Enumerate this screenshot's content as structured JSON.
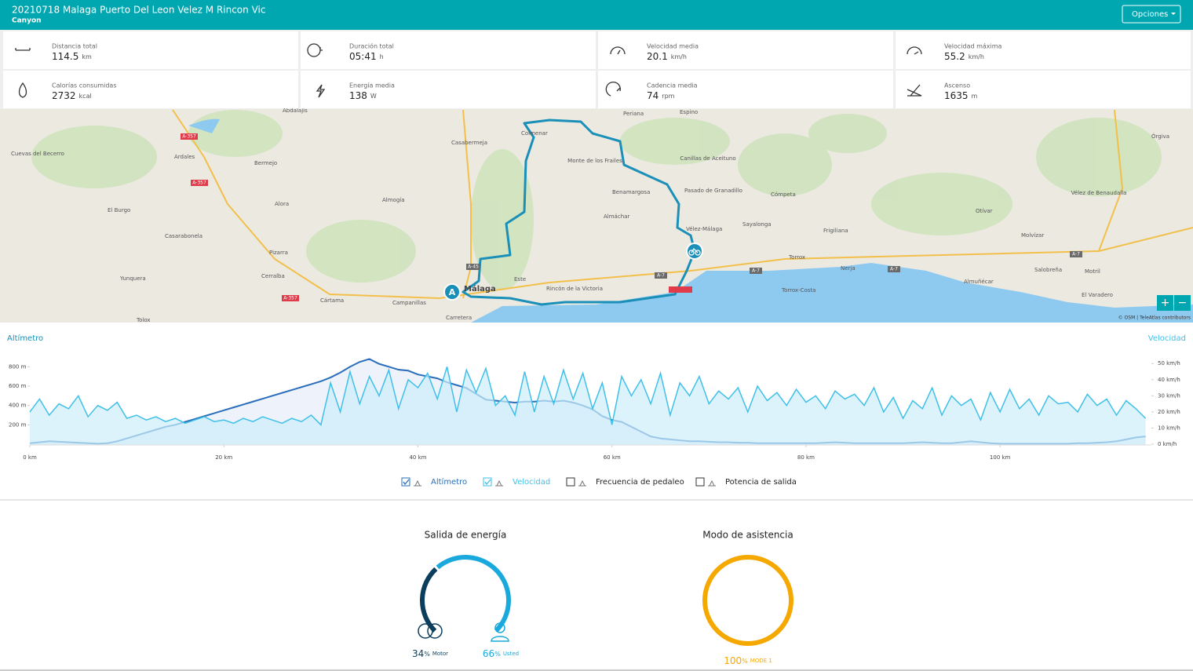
{
  "header": {
    "title": "20210718 Malaga Puerto Del Leon Velez M Rincon Vic",
    "subtitle": "Canyon",
    "options": "Opciones"
  },
  "stats": [
    {
      "label": "Distancia total",
      "value": 114.5,
      "unit": "km"
    },
    {
      "label": "Duración total",
      "value": "05:41",
      "unit": "h"
    },
    {
      "label": "Velocidad media",
      "value": 20.1,
      "unit": "km/h"
    },
    {
      "label": "Velocidad máxima",
      "value": 55.2,
      "unit": "km/h"
    },
    {
      "label": "Calorías consumidas",
      "value": 2732,
      "unit": "kcal"
    },
    {
      "label": "Energía media",
      "value": 138,
      "unit": "W"
    },
    {
      "label": "Cadencia media",
      "value": 74,
      "unit": "rpm"
    },
    {
      "label": "Ascenso",
      "value": 1635,
      "unit": "m"
    }
  ],
  "map": {
    "labels": [
      "Abdalajís",
      "Cuevas del Becerro",
      "Ardales",
      "Bermejo",
      "Casabermeja",
      "Colmenar",
      "Periana",
      "Espino",
      "Canillas de Aceituno",
      "Monte de los Frailes",
      "Pasado de Granadillo",
      "Benamargosa",
      "Almáchar",
      "Vélez-Málaga",
      "Cómpeta",
      "Sayalonga",
      "Frigiliana",
      "Torrox",
      "Torrox-Costa",
      "Nerja",
      "Otívar",
      "Órgiva",
      "Vélez de Benaudalla",
      "Molvízar",
      "Salobreña",
      "Motril",
      "Almuñécar",
      "El Varadero",
      "Alora",
      "Almogía",
      "El Burgo",
      "Casarabonela",
      "Pizarra",
      "Yunquera",
      "Cerralba",
      "Cártama",
      "Campanillas",
      "Málaga",
      "Este",
      "Rincón de la Victoria",
      "Tolox",
      "Carretera"
    ],
    "roads": [
      "A-357",
      "A-357",
      "A-357",
      "A-45",
      "A-7",
      "A-7",
      "A-7",
      "A-7"
    ],
    "start_marker": "A",
    "zoom_in": "+",
    "zoom_out": "−",
    "attribution": "© OSM | TeleAtlas contributors"
  },
  "chart_data": {
    "type": "line",
    "ylabel": "Altímetro",
    "y2label": "Velocidad",
    "x": [
      0,
      1,
      2,
      3,
      4,
      5,
      6,
      7,
      8,
      9,
      10,
      11,
      12,
      13,
      14,
      15,
      16,
      17,
      18,
      19,
      20,
      21,
      22,
      23,
      24,
      25,
      26,
      27,
      28,
      29,
      30,
      31,
      32,
      33,
      34,
      35,
      36,
      37,
      38,
      39,
      40,
      41,
      42,
      43,
      44,
      45,
      46,
      47,
      48,
      49,
      50,
      51,
      52,
      53,
      54,
      55,
      56,
      57,
      58,
      59,
      60,
      61,
      62,
      63,
      64,
      65,
      66,
      67,
      68,
      69,
      70,
      71,
      72,
      73,
      74,
      75,
      76,
      77,
      78,
      79,
      80,
      81,
      82,
      83,
      84,
      85,
      86,
      87,
      88,
      89,
      90,
      91,
      92,
      93,
      94,
      95,
      96,
      97,
      98,
      99,
      100,
      101,
      102,
      103,
      104,
      105,
      106,
      107,
      108,
      109,
      110,
      111,
      112,
      113,
      114,
      115
    ],
    "series": [
      {
        "name": "Altímetro",
        "color": "#2a6ebb",
        "fill": "#e6ecf9",
        "values": [
          10,
          20,
          30,
          25,
          20,
          15,
          10,
          5,
          10,
          30,
          60,
          90,
          120,
          150,
          180,
          200,
          230,
          260,
          290,
          320,
          350,
          380,
          410,
          440,
          470,
          500,
          530,
          560,
          590,
          620,
          650,
          690,
          740,
          800,
          850,
          880,
          830,
          800,
          770,
          760,
          720,
          700,
          680,
          640,
          610,
          580,
          520,
          460,
          450,
          440,
          430,
          440,
          440,
          450,
          440,
          450,
          430,
          400,
          360,
          290,
          250,
          230,
          180,
          130,
          80,
          60,
          50,
          40,
          30,
          30,
          25,
          20,
          20,
          15,
          15,
          10,
          10,
          10,
          10,
          10,
          10,
          10,
          15,
          20,
          15,
          10,
          10,
          10,
          10,
          10,
          10,
          15,
          20,
          15,
          10,
          10,
          20,
          30,
          20,
          10,
          5,
          5,
          5,
          5,
          5,
          5,
          5,
          5,
          10,
          10,
          15,
          20,
          30,
          50,
          70,
          80
        ]
      },
      {
        "name": "Velocidad",
        "color": "#3fc0e8",
        "fill": "#cdeefa",
        "axis": "y2",
        "values": [
          20,
          28,
          18,
          25,
          22,
          30,
          17,
          24,
          21,
          26,
          16,
          18,
          15,
          17,
          14,
          16,
          13,
          15,
          17,
          14,
          15,
          13,
          16,
          14,
          17,
          15,
          13,
          16,
          14,
          18,
          12,
          38,
          20,
          45,
          25,
          42,
          30,
          46,
          22,
          40,
          35,
          44,
          28,
          48,
          20,
          46,
          32,
          47,
          24,
          30,
          18,
          45,
          20,
          42,
          25,
          46,
          28,
          44,
          22,
          38,
          12,
          42,
          30,
          40,
          25,
          44,
          18,
          38,
          30,
          42,
          25,
          33,
          28,
          35,
          20,
          36,
          27,
          32,
          24,
          34,
          26,
          30,
          22,
          33,
          28,
          31,
          24,
          35,
          20,
          29,
          16,
          27,
          22,
          35,
          18,
          30,
          24,
          28,
          15,
          32,
          20,
          34,
          22,
          28,
          18,
          30,
          25,
          26,
          20,
          31,
          24,
          28,
          18,
          27,
          22,
          16
        ]
      }
    ],
    "xlim": [
      0,
      115.6
    ],
    "xticks": [
      {
        "value": 0,
        "label": "0 km"
      },
      {
        "value": 20,
        "label": "20 km"
      },
      {
        "value": 40,
        "label": "40 km"
      },
      {
        "value": 60,
        "label": "60 km"
      },
      {
        "value": 80,
        "label": "80 km"
      },
      {
        "value": 100,
        "label": "100 km"
      }
    ],
    "ylim": [
      0,
      900
    ],
    "yticks": [
      {
        "value": 200,
        "label": "200 m"
      },
      {
        "value": 400,
        "label": "400 m"
      },
      {
        "value": 600,
        "label": "600 m"
      },
      {
        "value": 800,
        "label": "800 m"
      }
    ],
    "y2lim": [
      0,
      54
    ],
    "y2ticks": [
      {
        "value": 0,
        "label": "0 km/h"
      },
      {
        "value": 10,
        "label": "10 km/h"
      },
      {
        "value": 20,
        "label": "20 km/h"
      },
      {
        "value": 30,
        "label": "30 km/h"
      },
      {
        "value": 40,
        "label": "40 km/h"
      },
      {
        "value": 50,
        "label": "50 km/h"
      }
    ],
    "toggles": [
      {
        "label": "Frecuencia de pedaleo",
        "checked": false
      },
      {
        "label": "Potencia de salida",
        "checked": false
      }
    ]
  },
  "energy": {
    "title": "Salida de energía",
    "parts": [
      {
        "value": 34,
        "unit": "%",
        "label": "Motor",
        "color": "#0b3d5c"
      },
      {
        "value": 66,
        "unit": "%",
        "label": "Usted",
        "color": "#1aa9dc"
      }
    ]
  },
  "assist": {
    "title": "Modo de asistencia",
    "parts": [
      {
        "value": 100,
        "unit": "%",
        "label": "MODE 1",
        "color": "#f5a800"
      }
    ]
  }
}
